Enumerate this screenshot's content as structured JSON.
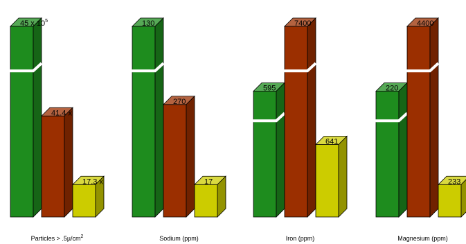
{
  "chart_data": {
    "type": "bar",
    "title": "",
    "xlabel": "",
    "ylabel": "",
    "colors": [
      "#1e8c1e",
      "#9b2f00",
      "#cccc00"
    ],
    "groups": [
      {
        "category": "Particles > .5µ/cm",
        "category_sup": "2",
        "bars": [
          {
            "label_main": "45 x 10",
            "label_sup": "5",
            "relative_height": 1.0,
            "broken": true
          },
          {
            "label_main": "41.4 x",
            "label_sup": "",
            "relative_height": 0.53,
            "broken": false
          },
          {
            "label_main": "17.3 x",
            "label_sup": "",
            "relative_height": 0.17,
            "broken": false
          }
        ]
      },
      {
        "category": "Sodium (ppm)",
        "category_sup": "",
        "bars": [
          {
            "label_main": "130",
            "label_sup": "",
            "relative_height": 1.0,
            "broken": true
          },
          {
            "label_main": "270",
            "label_sup": "",
            "relative_height": 0.59,
            "broken": false
          },
          {
            "label_main": "17",
            "label_sup": "",
            "relative_height": 0.17,
            "broken": false
          }
        ]
      },
      {
        "category": "Iron (ppm)",
        "category_sup": "",
        "bars": [
          {
            "label_main": "595",
            "label_sup": "",
            "relative_height": 0.66,
            "broken": true
          },
          {
            "label_main": "7400",
            "label_sup": "",
            "relative_height": 1.0,
            "broken": true
          },
          {
            "label_main": "641",
            "label_sup": "",
            "relative_height": 0.38,
            "broken": false
          }
        ]
      },
      {
        "category": "Magnesium (ppm)",
        "category_sup": "",
        "bars": [
          {
            "label_main": "220",
            "label_sup": "",
            "relative_height": 0.66,
            "broken": true
          },
          {
            "label_main": "4400",
            "label_sup": "",
            "relative_height": 1.0,
            "broken": true
          },
          {
            "label_main": "233",
            "label_sup": "",
            "relative_height": 0.17,
            "broken": false
          }
        ]
      }
    ]
  }
}
